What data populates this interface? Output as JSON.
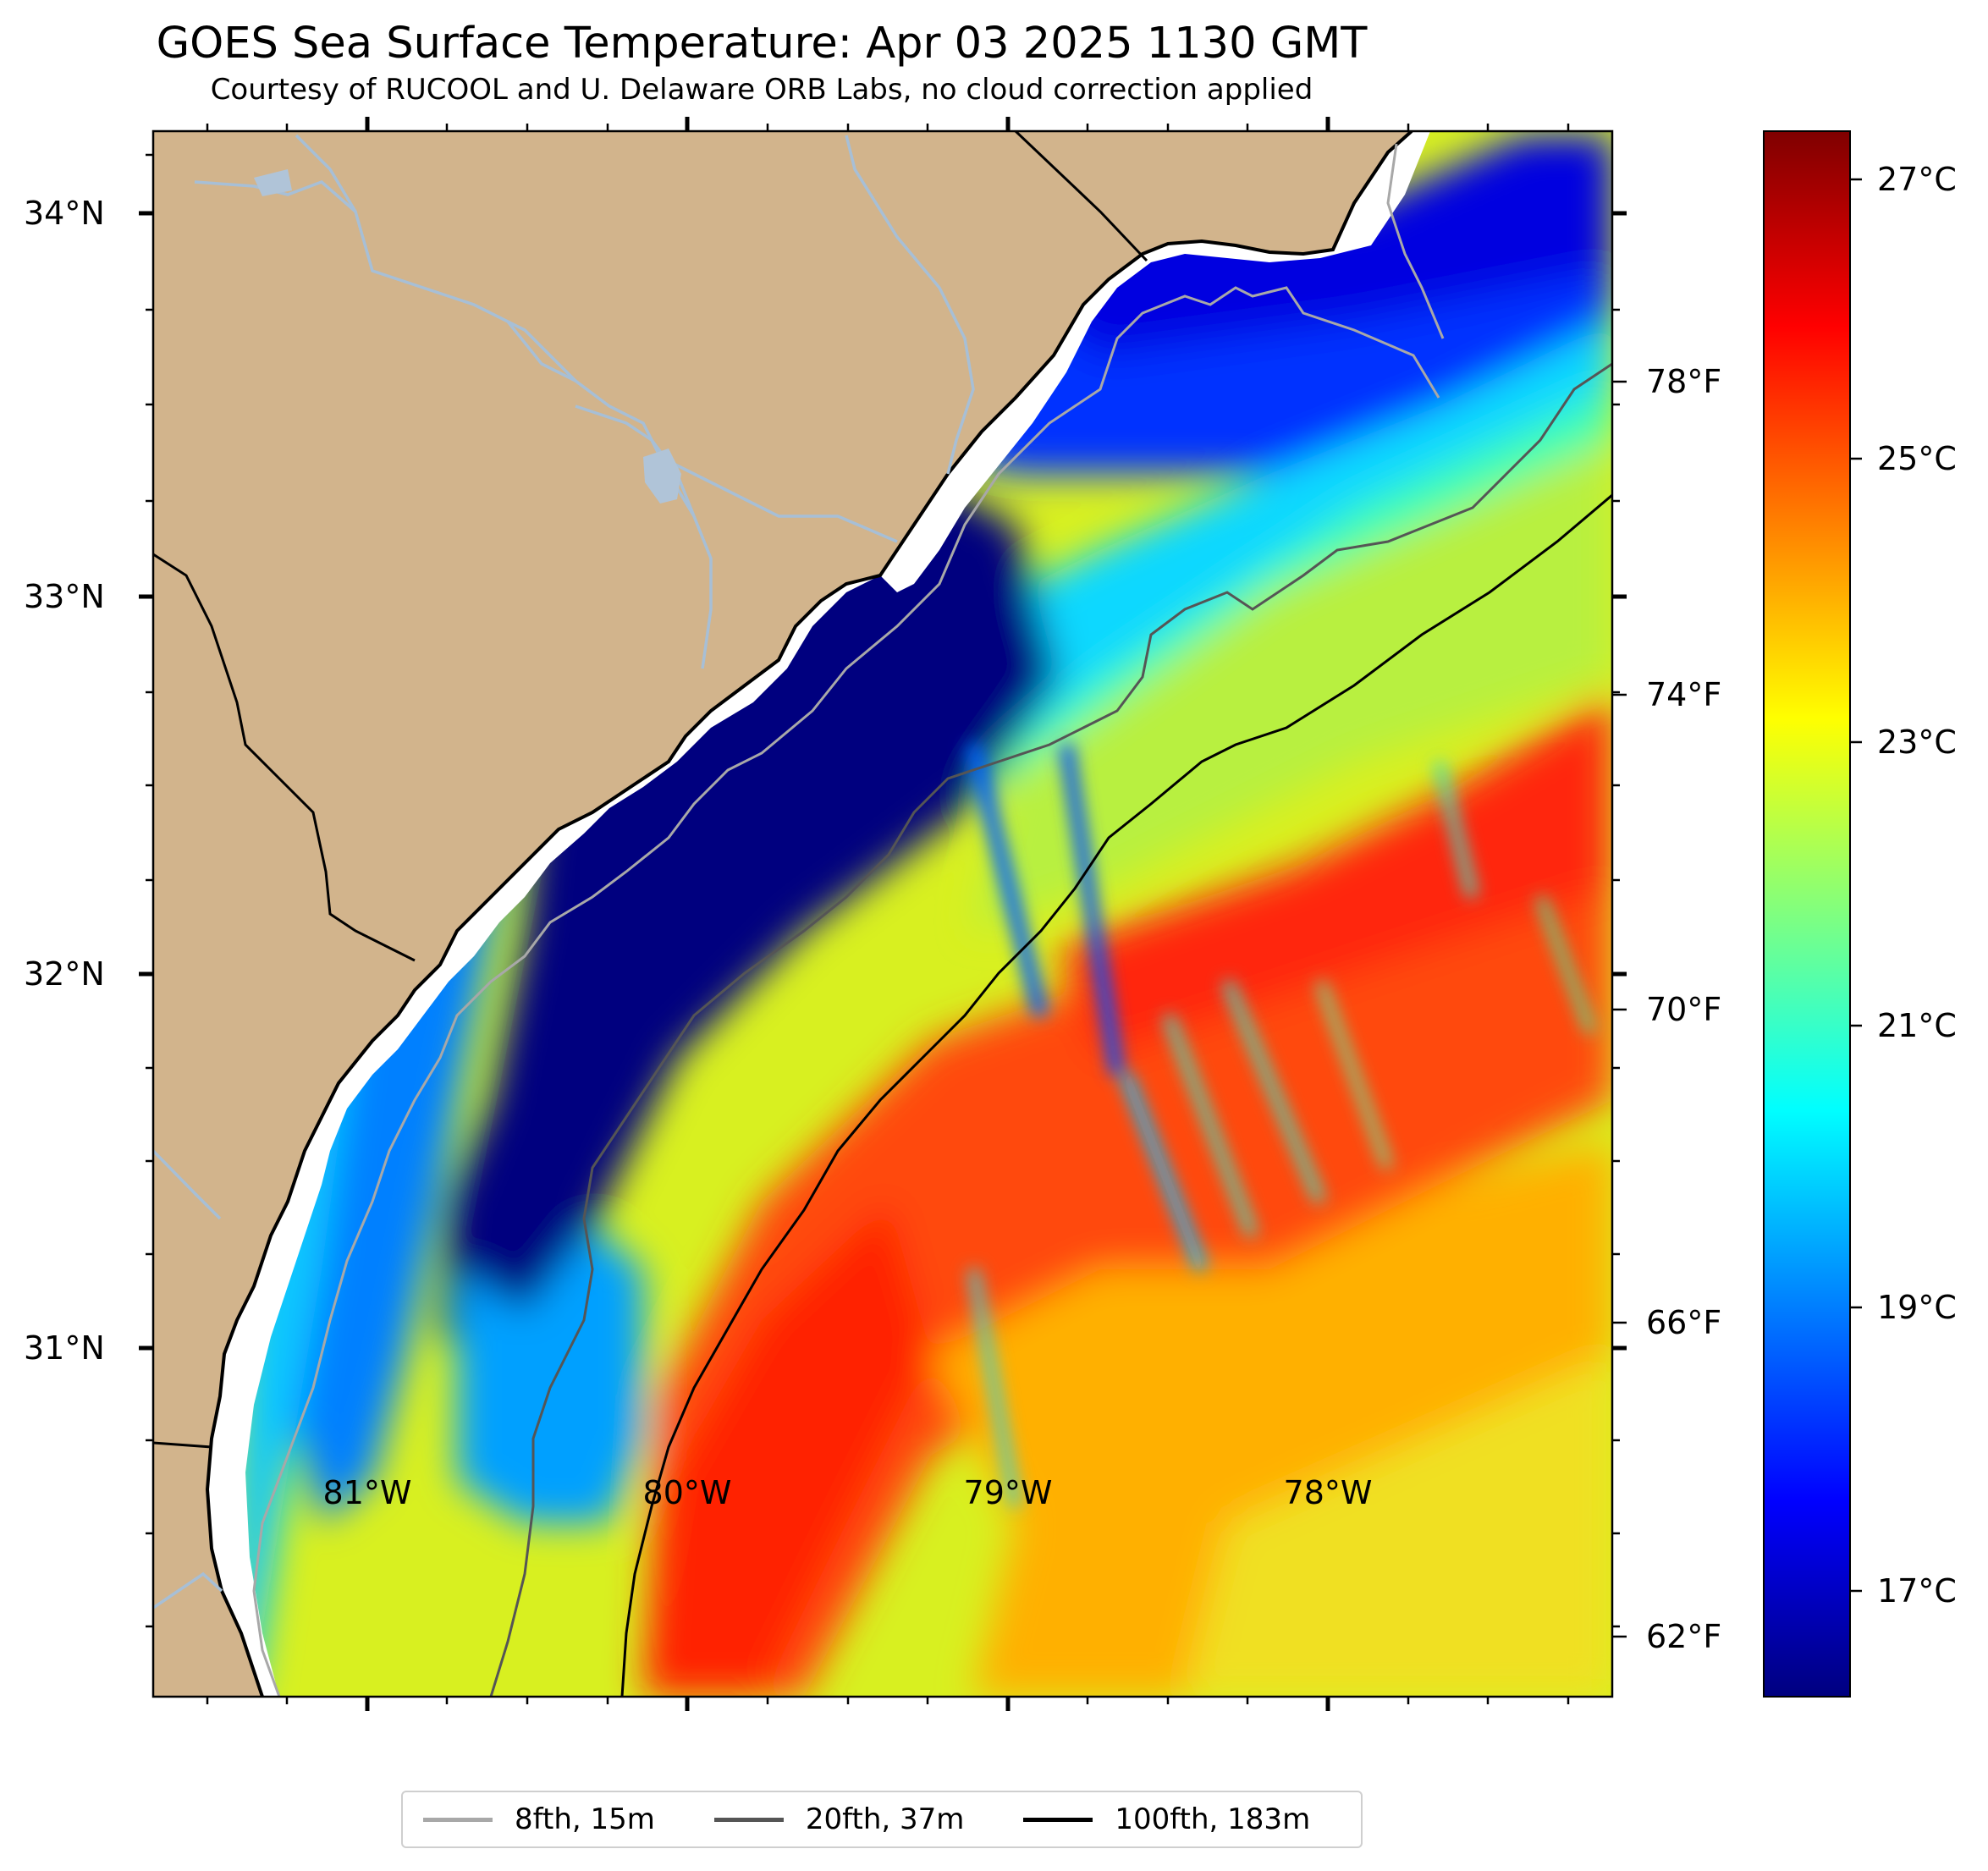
{
  "title": "GOES Sea Surface Temperature: Apr 03 2025 1130 GMT",
  "subtitle": "Courtesy of RUCOOL and U. Delaware ORB Labs, no cloud correction applied",
  "lat_labels": [
    "34°N",
    "33°N",
    "32°N",
    "31°N"
  ],
  "lon_labels": [
    "81°W",
    "80°W",
    "79°W",
    "78°W"
  ],
  "fahrenheit_ticks": [
    "78°F",
    "74°F",
    "70°F",
    "66°F",
    "62°F"
  ],
  "celsius_ticks": [
    "27°C",
    "25°C",
    "23°C",
    "21°C",
    "19°C",
    "17°C"
  ],
  "colorbar": {
    "min_c": 16.2,
    "max_c": 27.4,
    "colormap": "jet"
  },
  "legend": [
    {
      "label": "8fth, 15m",
      "color": "#a8a8a8"
    },
    {
      "label": "20fth, 37m",
      "color": "#555555"
    },
    {
      "label": "100fth, 183m",
      "color": "#000000"
    }
  ],
  "colors": {
    "land": "#d2b48c",
    "river": "#a7bfd6",
    "coast": "#000000"
  }
}
